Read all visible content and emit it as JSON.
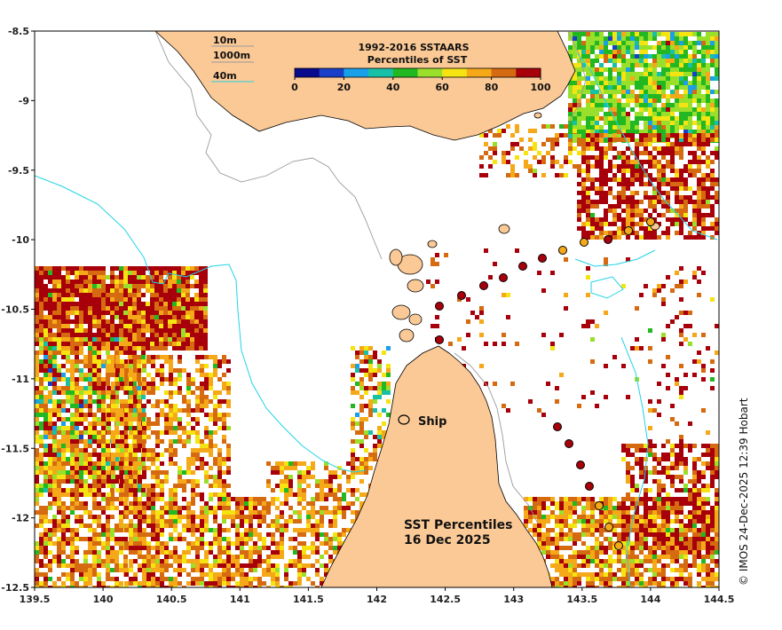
{
  "map": {
    "lon_range": [
      139.5,
      144.5
    ],
    "lat_range": [
      -12.5,
      -8.5
    ],
    "x_ticks": [
      "139.5",
      "140",
      "140.5",
      "141",
      "141.5",
      "142",
      "142.5",
      "143",
      "143.5",
      "144",
      "144.5"
    ],
    "y_ticks": [
      "-8.5",
      "-9",
      "-9.5",
      "-10",
      "-10.5",
      "-11",
      "-11.5",
      "-12",
      "-12.5"
    ],
    "land_color": "#fbc996",
    "isobath_labels": {
      "line1": "10m",
      "line2": "1000m",
      "line3": "40m"
    },
    "isobath_colors": {
      "gray": "#9a9a9a",
      "cyan": "#22d3e8"
    }
  },
  "legend": {
    "title_line1": "1992-2016 SSTAARS",
    "title_line2": "Percentiles of SST",
    "ticks": [
      "0",
      "20",
      "40",
      "60",
      "80",
      "100"
    ],
    "colors": [
      "#0a0a8c",
      "#1a3fc9",
      "#1aa0e8",
      "#18c0a8",
      "#22b822",
      "#9adf2a",
      "#f5e412",
      "#f5a818",
      "#d66a10",
      "#a8000a"
    ]
  },
  "labels": {
    "ship": "Ship",
    "title_line1": "SST Percentiles",
    "title_line2": "16 Dec 2025",
    "credit": "© IMOS 24-Dec-2025 12:39 Hobart"
  }
}
